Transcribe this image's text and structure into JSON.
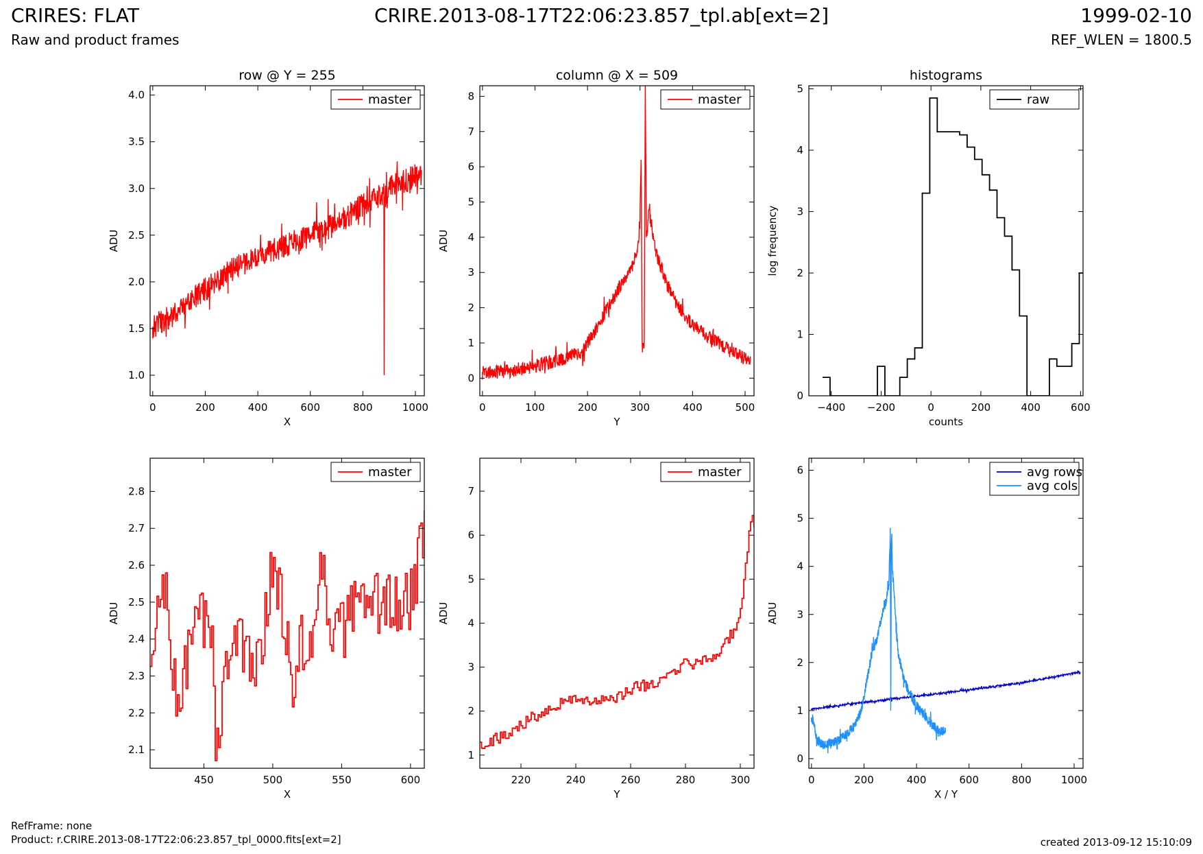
{
  "header": {
    "title_left": "CRIRES: FLAT",
    "subtitle_left": "Raw and product frames",
    "title_center": "CRIRE.2013-08-17T22:06:23.857_tpl.ab[ext=2]",
    "title_right": "1999-02-10",
    "subtitle_right": "REF_WLEN = 1800.5"
  },
  "footer": {
    "refframe": "RefFrame: none",
    "product": "Product: r.CRIRE.2013-08-17T22:06:23.857_tpl_0000.fits[ext=2]",
    "created": "created 2013-09-12 15:10:09"
  },
  "colors": {
    "master": "#ff0000",
    "raw": "#000000",
    "avg_rows": "#0000cc",
    "avg_cols": "#1e90ff"
  },
  "chart_data": [
    {
      "id": "row",
      "type": "line",
      "title": "row @ Y = 255",
      "xlabel": "X",
      "ylabel": "ADU",
      "xlim": [
        -10,
        1034
      ],
      "ylim": [
        0.78,
        4.1
      ],
      "xticks": [
        "0",
        "200",
        "400",
        "600",
        "800",
        "1000"
      ],
      "yticks": [
        "1.0",
        "1.5",
        "2.0",
        "2.5",
        "3.0",
        "3.5",
        "4.0"
      ],
      "legend": "top-right",
      "series": [
        {
          "name": "master",
          "color": "#ff0000",
          "x": [
            0,
            100,
            200,
            300,
            400,
            500,
            600,
            700,
            800,
            880,
            881,
            883,
            900,
            1000,
            1023
          ],
          "y": [
            1.52,
            1.68,
            1.92,
            2.13,
            2.27,
            2.38,
            2.5,
            2.62,
            2.82,
            2.95,
            1.0,
            2.9,
            3.02,
            3.13,
            3.15
          ],
          "noise": 0.13
        }
      ]
    },
    {
      "id": "column",
      "type": "line",
      "title": "column @ X = 509",
      "xlabel": "Y",
      "ylabel": "ADU",
      "xlim": [
        -5,
        517
      ],
      "ylim": [
        -0.5,
        8.3
      ],
      "xticks": [
        "0",
        "100",
        "200",
        "300",
        "400",
        "500"
      ],
      "yticks": [
        "0",
        "1",
        "2",
        "3",
        "4",
        "5",
        "6",
        "7",
        "8"
      ],
      "legend": "top-right",
      "series": [
        {
          "name": "master",
          "color": "#ff0000",
          "x": [
            0,
            40,
            50,
            100,
            150,
            190,
            220,
            250,
            270,
            285,
            295,
            300,
            302,
            304,
            306,
            308,
            310,
            312,
            314,
            316,
            320,
            330,
            350,
            370,
            400,
            450,
            480,
            510
          ],
          "y": [
            0.15,
            0.2,
            0.2,
            0.35,
            0.55,
            0.75,
            1.5,
            2.3,
            2.8,
            3.2,
            3.6,
            4.5,
            6.2,
            1.0,
            1.0,
            1.0,
            8.3,
            4.0,
            4.2,
            4.7,
            4.5,
            3.6,
            2.7,
            2.1,
            1.5,
            1.0,
            0.7,
            0.5
          ],
          "noise": 0.2
        }
      ]
    },
    {
      "id": "histogram",
      "type": "line",
      "title": "histograms",
      "xlabel": "counts",
      "ylabel": "log frequency",
      "xlim": [
        -490,
        610
      ],
      "ylim": [
        0,
        5.05
      ],
      "xticks": [
        "−400",
        "−200",
        "0",
        "200",
        "400",
        "600"
      ],
      "yticks": [
        "0",
        "1",
        "2",
        "3",
        "4",
        "5"
      ],
      "legend": "top-right",
      "series": [
        {
          "name": "raw",
          "color": "#000000",
          "step": true,
          "x": [
            -435,
            -405,
            -405,
            -215,
            -215,
            -185,
            -185,
            -125,
            -125,
            -95,
            -95,
            -65,
            -65,
            -35,
            -35,
            -5,
            -5,
            25,
            25,
            115,
            115,
            145,
            145,
            175,
            175,
            205,
            205,
            235,
            235,
            265,
            265,
            295,
            295,
            325,
            325,
            355,
            355,
            385,
            385,
            475,
            475,
            505,
            505,
            565,
            565,
            595,
            595,
            610
          ],
          "y": [
            0.3,
            0.3,
            0,
            0,
            0.48,
            0.48,
            0,
            0,
            0.3,
            0.3,
            0.6,
            0.6,
            0.78,
            0.78,
            3.3,
            3.3,
            4.85,
            4.85,
            4.3,
            4.3,
            4.25,
            4.25,
            4.05,
            4.05,
            3.85,
            3.85,
            3.6,
            3.6,
            3.35,
            3.35,
            2.9,
            2.9,
            2.6,
            2.6,
            2.05,
            2.05,
            1.3,
            1.3,
            0,
            0,
            0.6,
            0.6,
            0.48,
            0.48,
            0.85,
            0.85,
            2.0,
            2.0
          ]
        }
      ]
    },
    {
      "id": "row-zoom",
      "type": "line",
      "title": "",
      "xlabel": "X",
      "ylabel": "ADU",
      "xlim": [
        411,
        610
      ],
      "ylim": [
        2.05,
        2.89
      ],
      "xticks": [
        "450",
        "500",
        "550",
        "600"
      ],
      "yticks": [
        "2.1",
        "2.2",
        "2.3",
        "2.4",
        "2.5",
        "2.6",
        "2.7",
        "2.8"
      ],
      "legend": "top-right",
      "series": [
        {
          "name": "master",
          "color": "#ff0000",
          "step": true,
          "x": [
            411,
            420,
            430,
            440,
            450,
            457,
            458,
            470,
            480,
            490,
            500,
            510,
            515,
            520,
            530,
            537,
            540,
            550,
            560,
            570,
            580,
            590,
            600,
            605,
            609
          ],
          "y": [
            2.3,
            2.58,
            2.2,
            2.4,
            2.46,
            2.35,
            2.11,
            2.42,
            2.35,
            2.36,
            2.61,
            2.41,
            2.19,
            2.41,
            2.38,
            2.66,
            2.41,
            2.42,
            2.48,
            2.46,
            2.52,
            2.48,
            2.5,
            2.59,
            2.71
          ],
          "noise": 0.09
        }
      ]
    },
    {
      "id": "column-zoom",
      "type": "line",
      "title": "",
      "xlabel": "Y",
      "ylabel": "ADU",
      "xlim": [
        205,
        305
      ],
      "ylim": [
        0.7,
        7.75
      ],
      "xticks": [
        "220",
        "240",
        "260",
        "280",
        "300"
      ],
      "yticks": [
        "1",
        "2",
        "3",
        "4",
        "5",
        "6",
        "7"
      ],
      "legend": "top-right",
      "series": [
        {
          "name": "master",
          "color": "#ff0000",
          "step": true,
          "x": [
            205,
            210,
            215,
            220,
            225,
            230,
            235,
            240,
            245,
            250,
            255,
            260,
            265,
            270,
            275,
            280,
            285,
            290,
            295,
            298,
            300,
            302,
            304
          ],
          "y": [
            1.25,
            1.35,
            1.45,
            1.7,
            1.9,
            2.1,
            2.2,
            2.3,
            2.25,
            2.2,
            2.3,
            2.5,
            2.6,
            2.65,
            2.8,
            3.1,
            3.05,
            3.25,
            3.6,
            3.9,
            4.2,
            5.5,
            6.3
          ],
          "noise": 0.15
        }
      ]
    },
    {
      "id": "averages",
      "type": "line",
      "title": "",
      "xlabel": "X / Y",
      "ylabel": "ADU",
      "xlim": [
        -10,
        1034
      ],
      "ylim": [
        -0.2,
        6.25
      ],
      "xticks": [
        "0",
        "200",
        "400",
        "600",
        "800",
        "1000"
      ],
      "yticks": [
        "0",
        "1",
        "2",
        "3",
        "4",
        "5",
        "6"
      ],
      "legend": "top-right",
      "series": [
        {
          "name": "avg rows",
          "color": "#0000cc",
          "x": [
            0,
            200,
            400,
            600,
            800,
            1023
          ],
          "y": [
            1.03,
            1.17,
            1.3,
            1.43,
            1.58,
            1.8
          ],
          "noise": 0.02
        },
        {
          "name": "avg cols",
          "color": "#1e90ff",
          "x": [
            0,
            10,
            20,
            40,
            80,
            120,
            160,
            190,
            210,
            230,
            250,
            270,
            285,
            295,
            300,
            302,
            304,
            306,
            308,
            310,
            315,
            320,
            330,
            350,
            370,
            400,
            430,
            460,
            490,
            510
          ],
          "y": [
            0.85,
            0.75,
            0.4,
            0.3,
            0.32,
            0.45,
            0.65,
            1.0,
            1.6,
            2.2,
            2.5,
            3.0,
            3.3,
            3.6,
            4.8,
            1.0,
            4.5,
            4.6,
            3.9,
            3.8,
            3.4,
            3.0,
            2.2,
            1.7,
            1.4,
            1.1,
            0.9,
            0.7,
            0.55,
            0.6
          ],
          "noise": 0.1
        }
      ]
    }
  ]
}
